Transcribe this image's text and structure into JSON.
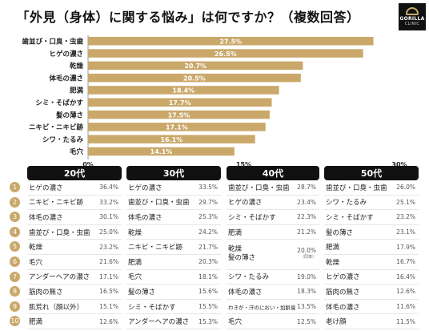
{
  "title": "「外見（身体）に関する悩み」は何ですか？（複数回答）",
  "logo": {
    "line1": "GORILLA",
    "line2": "CLINIC"
  },
  "chart_data": {
    "type": "bar",
    "orientation": "horizontal",
    "categories": [
      "歯並び・口臭・虫歯",
      "ヒゲの濃さ",
      "乾燥",
      "体毛の濃さ",
      "肥満",
      "シミ・そばかす",
      "髪の薄さ",
      "ニキビ・ニキビ跡",
      "シワ・たるみ",
      "毛穴"
    ],
    "values": [
      27.5,
      26.5,
      20.7,
      20.5,
      18.4,
      17.7,
      17.5,
      17.1,
      16.1,
      14.1
    ],
    "value_labels": [
      "27.5%",
      "26.5%",
      "20.7%",
      "20.5%",
      "18.4%",
      "17.7%",
      "17.5%",
      "17.1%",
      "16.1%",
      "14.1%"
    ],
    "xlim": [
      0,
      30
    ],
    "x_ticks": [
      0,
      15,
      30
    ],
    "x_tick_labels": [
      "0%",
      "15%",
      "30%"
    ],
    "bar_color": "#c9a86a",
    "label_color": "#ffffff",
    "grid": false
  },
  "ranks": [
    "1",
    "2",
    "3",
    "4",
    "5",
    "6",
    "7",
    "8",
    "9",
    "10"
  ],
  "rank_color": "#c9a86a",
  "tables": [
    {
      "header": "20代",
      "rows": [
        {
          "label": "ヒゲの濃さ",
          "value": "36.4%"
        },
        {
          "label": "ニキビ・ニキビ跡",
          "value": "33.2%"
        },
        {
          "label": "体毛の濃さ",
          "value": "30.1%"
        },
        {
          "label": "歯並び・口臭・虫歯",
          "value": "25.0%"
        },
        {
          "label": "乾燥",
          "value": "23.2%"
        },
        {
          "label": "毛穴",
          "value": "21.6%"
        },
        {
          "label": "アンダーヘアの濃さ",
          "value": "17.1%"
        },
        {
          "label": "筋肉の無さ",
          "value": "16.5%"
        },
        {
          "label": "肌荒れ（顔以外）",
          "value": "15.1%"
        },
        {
          "label": "肥満",
          "value": "12.6%"
        }
      ]
    },
    {
      "header": "30代",
      "rows": [
        {
          "label": "ヒゲの濃さ",
          "value": "33.5%"
        },
        {
          "label": "歯並び・口臭・虫歯",
          "value": "29.7%"
        },
        {
          "label": "体毛の濃さ",
          "value": "25.3%"
        },
        {
          "label": "乾燥",
          "value": "24.2%"
        },
        {
          "label": "ニキビ・ニキビ跡",
          "value": "21.7%"
        },
        {
          "label": "肥満",
          "value": "20.3%"
        },
        {
          "label": "毛穴",
          "value": "18.1%"
        },
        {
          "label": "髪の薄さ",
          "value": "15.6%"
        },
        {
          "label": "シミ・そばかす",
          "value": "15.5%"
        },
        {
          "label": "アンダーヘアの濃さ",
          "value": "15.3%"
        }
      ]
    },
    {
      "header": "40代",
      "rows": [
        {
          "label": "歯並び・口臭・虫歯",
          "value": "28.7%"
        },
        {
          "label": "ヒゲの濃さ",
          "value": "23.4%"
        },
        {
          "label": "シミ・そばかす",
          "value": "22.3%"
        },
        {
          "label": "肥満",
          "value": "21.2%"
        },
        {
          "label": "乾燥",
          "label2": "髪の薄さ",
          "value": "20.0%",
          "note": "（同率）"
        },
        {
          "label": "シワ・たるみ",
          "value": "19.0%"
        },
        {
          "label": "体毛の濃さ",
          "value": "18.3%"
        },
        {
          "label": "わきが・汗のにおい・加齢臭",
          "value": "13.5%",
          "small": true
        },
        {
          "label": "毛穴",
          "value": "12.5%"
        }
      ]
    },
    {
      "header": "50代",
      "rows": [
        {
          "label": "歯並び・口臭・虫歯",
          "value": "26.0%"
        },
        {
          "label": "シワ・たるみ",
          "value": "25.1%"
        },
        {
          "label": "シミ・そばかす",
          "value": "23.2%"
        },
        {
          "label": "髪の薄さ",
          "value": "23.1%"
        },
        {
          "label": "肥満",
          "value": "17.9%"
        },
        {
          "label": "乾燥",
          "value": "16.7%"
        },
        {
          "label": "ヒゲの濃さ",
          "value": "16.4%"
        },
        {
          "label": "筋肉の無さ",
          "value": "12.6%"
        },
        {
          "label": "体毛の濃さ",
          "value": "11.6%"
        },
        {
          "label": "老け顔",
          "value": "11.5%"
        }
      ]
    }
  ]
}
